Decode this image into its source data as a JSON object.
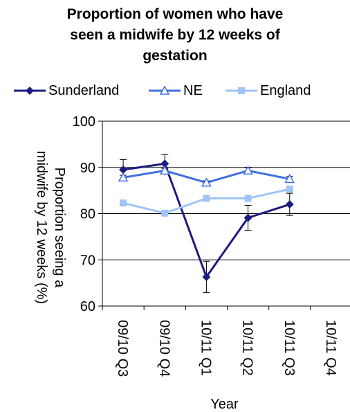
{
  "chart_data": {
    "type": "line",
    "title_lines": [
      "Proportion of women who have",
      "seen a midwife by 12 weeks of",
      "gestation"
    ],
    "xlabel": "Year",
    "ylabel_lines": [
      "Proportion seeing a",
      "midwife by 12 weeks (%)"
    ],
    "categories": [
      "09/10 Q3",
      "09/10 Q4",
      "10/11 Q1",
      "10/11 Q2",
      "10/11 Q3",
      "10/11 Q4"
    ],
    "ylim": [
      60,
      100
    ],
    "yticks": [
      60,
      70,
      80,
      90,
      100
    ],
    "grid": true,
    "legend_position": "top",
    "series": [
      {
        "name": "Sunderland",
        "color": "#1b1b80",
        "marker": "diamond",
        "values": [
          89.5,
          90.8,
          66.3,
          79.1,
          82.0,
          null
        ],
        "error": [
          2.2,
          2.0,
          3.4,
          2.7,
          2.4,
          null
        ]
      },
      {
        "name": "NE",
        "color": "#3f6fe0",
        "marker": "triangle-open",
        "values": [
          87.8,
          89.3,
          86.7,
          89.3,
          87.5,
          null
        ],
        "error": [
          0.5,
          0.5,
          0.4,
          0.6,
          0.6,
          null
        ]
      },
      {
        "name": "England",
        "color": "#9fc4f5",
        "marker": "square",
        "values": [
          82.3,
          80.1,
          83.3,
          83.3,
          85.3,
          null
        ],
        "error": [
          null,
          null,
          null,
          null,
          null,
          null
        ]
      }
    ]
  }
}
